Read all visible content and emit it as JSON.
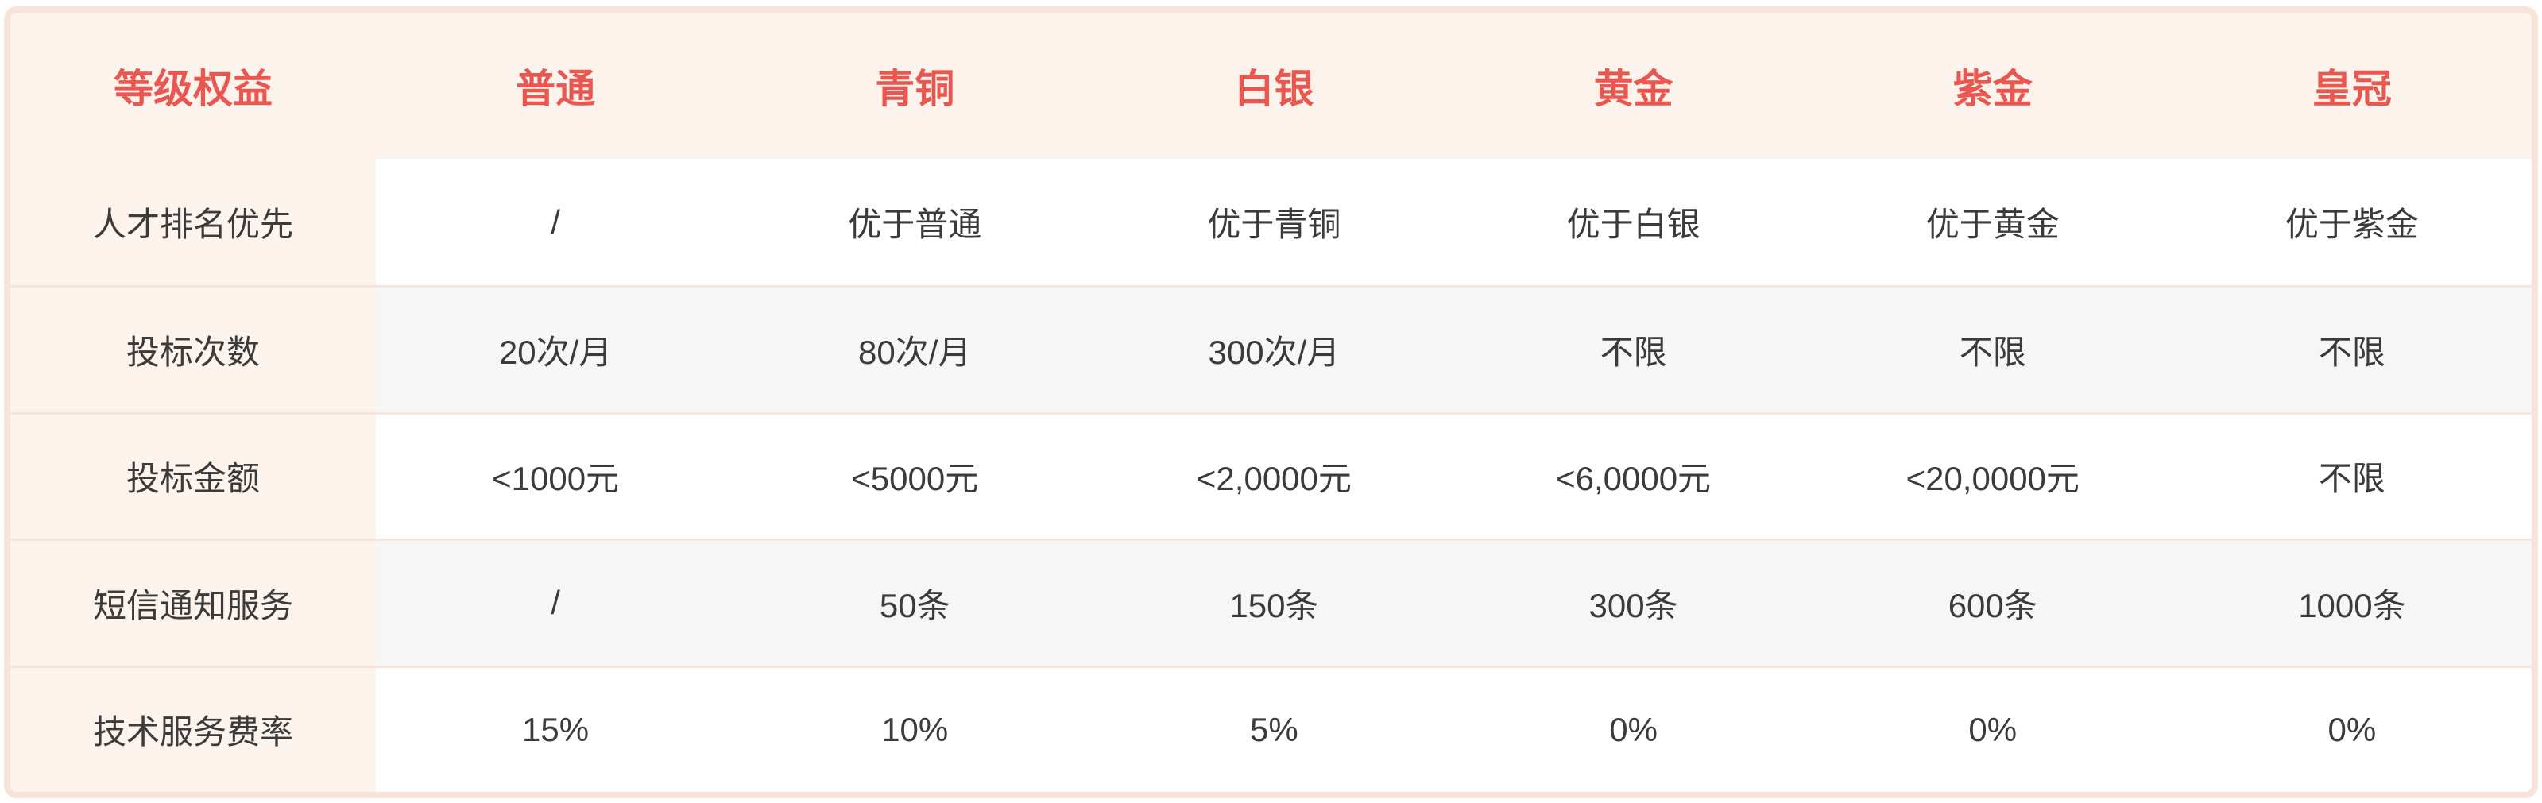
{
  "chart_data": {
    "type": "table",
    "corner_header": "等级权益",
    "columns": [
      "普通",
      "青铜",
      "白银",
      "黄金",
      "紫金",
      "皇冠"
    ],
    "rows": [
      {
        "label": "人才排名优先",
        "values": [
          "/",
          "优于普通",
          "优于青铜",
          "优于白银",
          "优于黄金",
          "优于紫金"
        ]
      },
      {
        "label": "投标次数",
        "values": [
          "20次/月",
          "80次/月",
          "300次/月",
          "不限",
          "不限",
          "不限"
        ]
      },
      {
        "label": "投标金额",
        "values": [
          "<1000元",
          "<5000元",
          "<2,0000元",
          "<6,0000元",
          "<20,0000元",
          "不限"
        ]
      },
      {
        "label": "短信通知服务",
        "values": [
          "/",
          "50条",
          "150条",
          "300条",
          "600条",
          "1000条"
        ]
      },
      {
        "label": "技术服务费率",
        "values": [
          "15%",
          "10%",
          "5%",
          "0%",
          "0%",
          "0%"
        ]
      }
    ],
    "layout": {
      "header_row": "top",
      "label_column": "left",
      "row_striping": [
        "white",
        "gray",
        "white",
        "gray",
        "white"
      ]
    }
  },
  "colors": {
    "accent_red": "#e85750",
    "panel_peach": "#fdf3ed",
    "border_peach": "#f7e3d9",
    "divider_peach": "#f8e5dc",
    "row_alt_gray": "#f6f6f6",
    "text_dark": "#3b3b3b"
  }
}
